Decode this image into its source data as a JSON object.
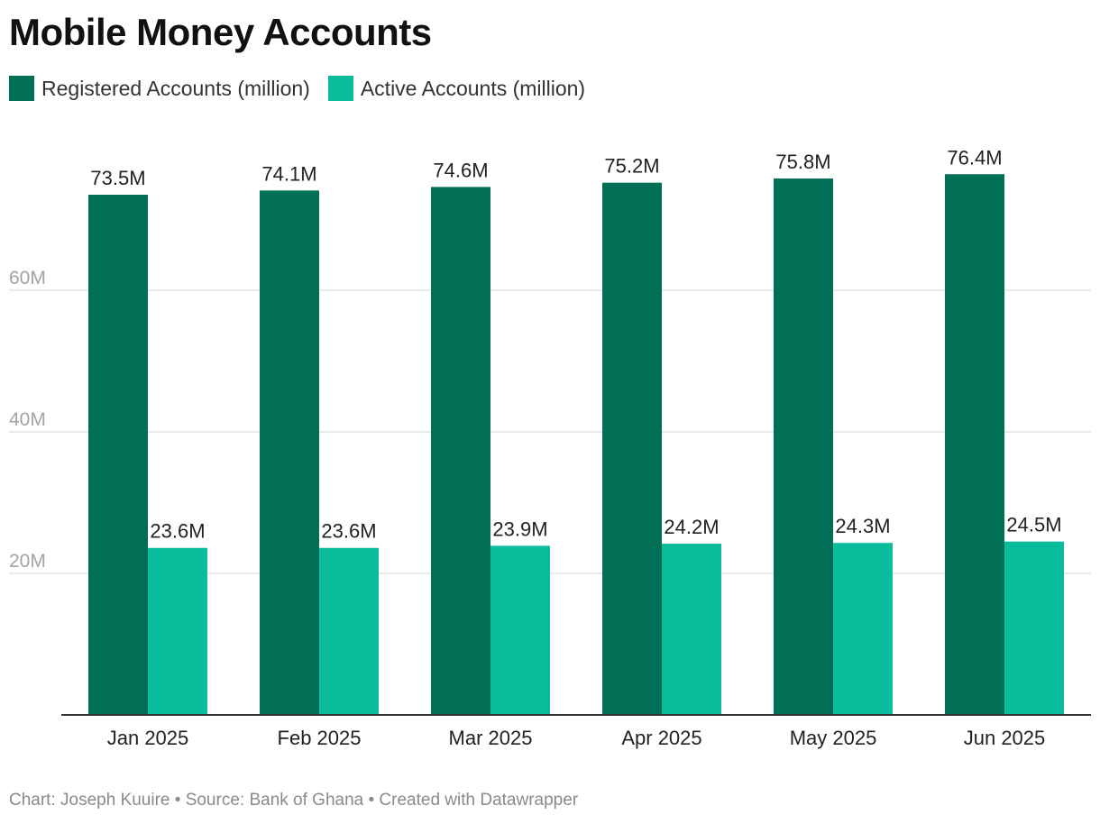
{
  "title": "Mobile Money Accounts",
  "footer": "Chart: Joseph Kuuire • Source: Bank of Ghana • Created with Datawrapper",
  "chart_data": {
    "type": "bar",
    "categories": [
      "Jan 2025",
      "Feb 2025",
      "Mar 2025",
      "Apr 2025",
      "May 2025",
      "Jun 2025"
    ],
    "series": [
      {
        "name": "Registered Accounts (million)",
        "color": "#006f56",
        "values": [
          73.5,
          74.1,
          74.6,
          75.2,
          75.8,
          76.4
        ],
        "labels": [
          "73.5M",
          "74.1M",
          "74.6M",
          "75.2M",
          "75.8M",
          "76.4M"
        ]
      },
      {
        "name": "Active Accounts (million)",
        "color": "#0bbc9c",
        "values": [
          23.6,
          23.6,
          23.9,
          24.2,
          24.3,
          24.5
        ],
        "labels": [
          "23.6M",
          "23.6M",
          "23.9M",
          "24.2M",
          "24.3M",
          "24.5M"
        ]
      }
    ],
    "yticks": [
      {
        "value": 20,
        "label": "20M"
      },
      {
        "value": 40,
        "label": "40M"
      },
      {
        "value": 60,
        "label": "60M"
      }
    ],
    "ylim": [
      0,
      80
    ],
    "grid": true,
    "legend_position": "top-left"
  }
}
